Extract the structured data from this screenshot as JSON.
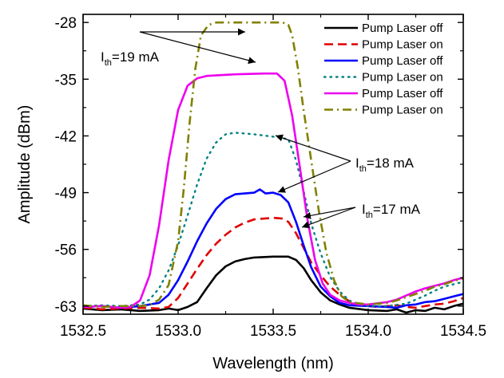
{
  "chart_data": {
    "type": "line",
    "title": "",
    "xlabel": "Wavelength (nm)",
    "ylabel": "Amplitude (dBm)",
    "xlim": [
      1532.5,
      1534.5
    ],
    "ylim": [
      -64,
      -27
    ],
    "xticks": [
      1532.5,
      1533.0,
      1533.5,
      1534.0,
      1534.5
    ],
    "xtick_labels": [
      "1532.5",
      "1533.0",
      "1533.5",
      "1534.0",
      "1534.5"
    ],
    "yticks": [
      -63,
      -56,
      -49,
      -42,
      -35,
      -28
    ],
    "ytick_labels": [
      "-63",
      "-56",
      "-49",
      "-42",
      "-35",
      "-28"
    ],
    "grid": false,
    "legend_position": "top-right",
    "series": [
      {
        "name": "Pump Laser off",
        "color": "#000000",
        "style": "solid",
        "points": [
          [
            1532.5,
            -63.3
          ],
          [
            1532.6,
            -63.5
          ],
          [
            1532.7,
            -63.4
          ],
          [
            1532.8,
            -63.6
          ],
          [
            1532.9,
            -63.5
          ],
          [
            1532.95,
            -63.3
          ],
          [
            1533.0,
            -63.5
          ],
          [
            1533.05,
            -63.1
          ],
          [
            1533.1,
            -62.5
          ],
          [
            1533.15,
            -60.8
          ],
          [
            1533.2,
            -59.2
          ],
          [
            1533.25,
            -58.1
          ],
          [
            1533.3,
            -57.5
          ],
          [
            1533.35,
            -57.2
          ],
          [
            1533.4,
            -57.0
          ],
          [
            1533.5,
            -56.9
          ],
          [
            1533.58,
            -56.9
          ],
          [
            1533.62,
            -57.3
          ],
          [
            1533.66,
            -58.3
          ],
          [
            1533.7,
            -59.8
          ],
          [
            1533.75,
            -61.3
          ],
          [
            1533.8,
            -62.3
          ],
          [
            1533.85,
            -62.8
          ],
          [
            1533.9,
            -63.2
          ],
          [
            1534.0,
            -63.5
          ],
          [
            1534.1,
            -63.6
          ],
          [
            1534.15,
            -63.4
          ],
          [
            1534.2,
            -63.8
          ],
          [
            1534.25,
            -63.5
          ],
          [
            1534.3,
            -63.6
          ],
          [
            1534.35,
            -63.2
          ],
          [
            1534.4,
            -63.4
          ],
          [
            1534.45,
            -63.0
          ],
          [
            1534.5,
            -62.7
          ]
        ]
      },
      {
        "name": "Pump Laser on",
        "color": "#e00000",
        "style": "dashed",
        "points": [
          [
            1532.5,
            -63.2
          ],
          [
            1532.6,
            -63.4
          ],
          [
            1532.7,
            -63.3
          ],
          [
            1532.8,
            -63.2
          ],
          [
            1532.9,
            -63.3
          ],
          [
            1532.95,
            -63.1
          ],
          [
            1533.0,
            -62.0
          ],
          [
            1533.05,
            -60.2
          ],
          [
            1533.1,
            -58.4
          ],
          [
            1533.15,
            -56.7
          ],
          [
            1533.2,
            -55.3
          ],
          [
            1533.25,
            -54.2
          ],
          [
            1533.3,
            -53.3
          ],
          [
            1533.35,
            -52.7
          ],
          [
            1533.4,
            -52.3
          ],
          [
            1533.5,
            -52.1
          ],
          [
            1533.55,
            -52.2
          ],
          [
            1533.58,
            -52.6
          ],
          [
            1533.62,
            -54.0
          ],
          [
            1533.66,
            -55.8
          ],
          [
            1533.7,
            -57.6
          ],
          [
            1533.75,
            -59.2
          ],
          [
            1533.8,
            -60.6
          ],
          [
            1533.85,
            -61.6
          ],
          [
            1533.9,
            -62.4
          ],
          [
            1533.95,
            -62.8
          ],
          [
            1534.0,
            -63.0
          ],
          [
            1534.05,
            -63.1
          ],
          [
            1534.1,
            -63.0
          ],
          [
            1534.15,
            -62.9
          ],
          [
            1534.2,
            -63.1
          ],
          [
            1534.25,
            -63.2
          ],
          [
            1534.3,
            -63.0
          ],
          [
            1534.35,
            -62.8
          ],
          [
            1534.4,
            -62.7
          ],
          [
            1534.45,
            -62.4
          ],
          [
            1534.5,
            -62.0
          ]
        ]
      },
      {
        "name": "Pump Laser off",
        "color": "#0000ff",
        "style": "solid",
        "points": [
          [
            1532.5,
            -63.1
          ],
          [
            1532.6,
            -63.0
          ],
          [
            1532.7,
            -63.2
          ],
          [
            1532.8,
            -63.0
          ],
          [
            1532.9,
            -62.6
          ],
          [
            1532.95,
            -61.6
          ],
          [
            1533.0,
            -59.8
          ],
          [
            1533.05,
            -57.5
          ],
          [
            1533.1,
            -55.0
          ],
          [
            1533.15,
            -52.8
          ],
          [
            1533.2,
            -51.0
          ],
          [
            1533.25,
            -49.8
          ],
          [
            1533.3,
            -49.2
          ],
          [
            1533.35,
            -49.1
          ],
          [
            1533.4,
            -49.0
          ],
          [
            1533.43,
            -48.6
          ],
          [
            1533.46,
            -49.1
          ],
          [
            1533.5,
            -49.0
          ],
          [
            1533.54,
            -49.3
          ],
          [
            1533.58,
            -50.2
          ],
          [
            1533.62,
            -52.6
          ],
          [
            1533.66,
            -55.5
          ],
          [
            1533.7,
            -58.2
          ],
          [
            1533.75,
            -60.6
          ],
          [
            1533.8,
            -61.8
          ],
          [
            1533.85,
            -62.6
          ],
          [
            1533.9,
            -62.9
          ],
          [
            1534.0,
            -63.0
          ],
          [
            1534.1,
            -63.1
          ],
          [
            1534.15,
            -63.2
          ],
          [
            1534.2,
            -62.9
          ],
          [
            1534.25,
            -62.8
          ],
          [
            1534.3,
            -62.5
          ],
          [
            1534.35,
            -62.4
          ],
          [
            1534.4,
            -62.1
          ],
          [
            1534.45,
            -61.8
          ],
          [
            1534.5,
            -61.5
          ]
        ]
      },
      {
        "name": "Pump Laser on",
        "color": "#008080",
        "style": "dotted",
        "points": [
          [
            1532.5,
            -63.0
          ],
          [
            1532.6,
            -62.9
          ],
          [
            1532.7,
            -63.0
          ],
          [
            1532.8,
            -62.8
          ],
          [
            1532.85,
            -62.2
          ],
          [
            1532.9,
            -60.8
          ],
          [
            1532.95,
            -58.6
          ],
          [
            1533.0,
            -55.5
          ],
          [
            1533.05,
            -51.8
          ],
          [
            1533.1,
            -48.0
          ],
          [
            1533.15,
            -44.8
          ],
          [
            1533.2,
            -42.8
          ],
          [
            1533.25,
            -41.8
          ],
          [
            1533.3,
            -41.6
          ],
          [
            1533.4,
            -41.8
          ],
          [
            1533.5,
            -42.1
          ],
          [
            1533.58,
            -42.4
          ],
          [
            1533.62,
            -45.0
          ],
          [
            1533.66,
            -48.8
          ],
          [
            1533.7,
            -52.8
          ],
          [
            1533.75,
            -56.5
          ],
          [
            1533.8,
            -59.4
          ],
          [
            1533.85,
            -61.2
          ],
          [
            1533.9,
            -62.3
          ],
          [
            1533.95,
            -62.8
          ],
          [
            1534.0,
            -63.0
          ],
          [
            1534.1,
            -63.0
          ],
          [
            1534.2,
            -62.7
          ],
          [
            1534.25,
            -62.2
          ],
          [
            1534.3,
            -61.7
          ],
          [
            1534.35,
            -61.1
          ],
          [
            1534.4,
            -60.6
          ],
          [
            1534.45,
            -60.3
          ],
          [
            1534.5,
            -60.0
          ]
        ]
      },
      {
        "name": "Pump Laser off",
        "color": "#ee00ee",
        "style": "solid",
        "points": [
          [
            1532.5,
            -63.1
          ],
          [
            1532.6,
            -63.0
          ],
          [
            1532.7,
            -63.2
          ],
          [
            1532.75,
            -63.1
          ],
          [
            1532.8,
            -62.3
          ],
          [
            1532.85,
            -59.2
          ],
          [
            1532.9,
            -53.0
          ],
          [
            1532.95,
            -45.0
          ],
          [
            1533.0,
            -38.8
          ],
          [
            1533.05,
            -35.8
          ],
          [
            1533.1,
            -34.9
          ],
          [
            1533.15,
            -34.6
          ],
          [
            1533.3,
            -34.4
          ],
          [
            1533.45,
            -34.3
          ],
          [
            1533.52,
            -34.3
          ],
          [
            1533.56,
            -35.2
          ],
          [
            1533.6,
            -39.5
          ],
          [
            1533.64,
            -45.8
          ],
          [
            1533.68,
            -52.2
          ],
          [
            1533.72,
            -57.3
          ],
          [
            1533.76,
            -60.2
          ],
          [
            1533.8,
            -61.6
          ],
          [
            1533.85,
            -62.3
          ],
          [
            1533.9,
            -62.6
          ],
          [
            1533.95,
            -62.8
          ],
          [
            1534.0,
            -62.8
          ],
          [
            1534.1,
            -62.5
          ],
          [
            1534.15,
            -62.2
          ],
          [
            1534.2,
            -61.7
          ],
          [
            1534.25,
            -61.2
          ],
          [
            1534.3,
            -60.8
          ],
          [
            1534.35,
            -60.5
          ],
          [
            1534.4,
            -60.2
          ],
          [
            1534.45,
            -59.8
          ],
          [
            1534.5,
            -59.5
          ]
        ]
      },
      {
        "name": "Pump Laser on",
        "color": "#808000",
        "style": "dashdot",
        "points": [
          [
            1532.5,
            -62.9
          ],
          [
            1532.6,
            -63.1
          ],
          [
            1532.7,
            -63.0
          ],
          [
            1532.8,
            -63.0
          ],
          [
            1532.85,
            -62.9
          ],
          [
            1532.9,
            -62.2
          ],
          [
            1532.95,
            -60.4
          ],
          [
            1533.0,
            -55.0
          ],
          [
            1533.03,
            -48.5
          ],
          [
            1533.06,
            -40.5
          ],
          [
            1533.09,
            -33.8
          ],
          [
            1533.12,
            -29.6
          ],
          [
            1533.16,
            -28.3
          ],
          [
            1533.2,
            -28.0
          ],
          [
            1533.4,
            -28.0
          ],
          [
            1533.55,
            -28.0
          ],
          [
            1533.58,
            -28.3
          ],
          [
            1533.6,
            -29.6
          ],
          [
            1533.63,
            -33.6
          ],
          [
            1533.66,
            -38.8
          ],
          [
            1533.7,
            -45.0
          ],
          [
            1533.74,
            -51.2
          ],
          [
            1533.78,
            -56.4
          ],
          [
            1533.82,
            -59.8
          ],
          [
            1533.86,
            -61.8
          ],
          [
            1533.9,
            -62.5
          ],
          [
            1534.0,
            -62.8
          ],
          [
            1534.1,
            -62.6
          ],
          [
            1534.15,
            -62.3
          ],
          [
            1534.2,
            -61.9
          ],
          [
            1534.25,
            -61.5
          ],
          [
            1534.3,
            -61.1
          ],
          [
            1534.35,
            -60.6
          ],
          [
            1534.4,
            -60.3
          ],
          [
            1534.45,
            -59.9
          ],
          [
            1534.5,
            -59.6
          ]
        ]
      }
    ],
    "annotations": [
      {
        "main": "I",
        "sub": "th",
        "rest": "=19 mA"
      },
      {
        "main": "I",
        "sub": "th",
        "rest": "=18 mA"
      },
      {
        "main": "I",
        "sub": "th",
        "rest": "=17 mA"
      }
    ]
  }
}
